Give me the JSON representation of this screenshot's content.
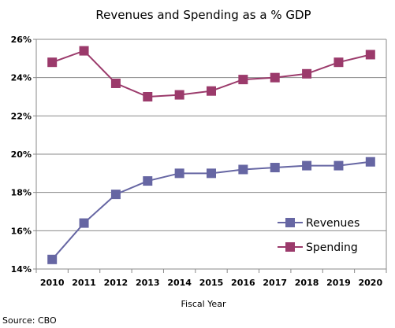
{
  "chart_data": {
    "type": "line",
    "title": "Revenues and Spending as a % GDP",
    "xlabel": "Fiscal Year",
    "ylabel": "",
    "x": [
      "2010",
      "2011",
      "2012",
      "2013",
      "2014",
      "2015",
      "2016",
      "2017",
      "2018",
      "2019",
      "2020"
    ],
    "y_ticks": [
      "14%",
      "16%",
      "18%",
      "20%",
      "22%",
      "24%",
      "26%"
    ],
    "ylim": [
      14,
      26
    ],
    "grid": true,
    "legend_position": "bottom-right",
    "series": [
      {
        "name": "Revenues",
        "color": "#6666a3",
        "values": [
          14.5,
          16.4,
          17.9,
          18.6,
          19.0,
          19.0,
          19.2,
          19.3,
          19.4,
          19.4,
          19.6
        ]
      },
      {
        "name": "Spending",
        "color": "#9b3a6b",
        "values": [
          24.8,
          25.4,
          23.7,
          23.0,
          23.1,
          23.3,
          23.9,
          24.0,
          24.2,
          24.8,
          25.2
        ]
      }
    ],
    "source": "Source: CBO"
  }
}
